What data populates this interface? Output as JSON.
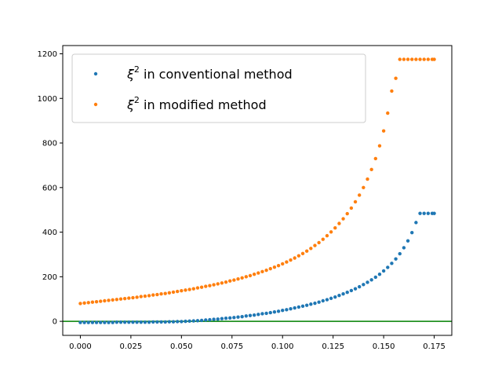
{
  "chart_data": {
    "type": "scatter",
    "title": "",
    "xlabel": "",
    "ylabel": "",
    "xlim": [
      -0.0087,
      0.1837
    ],
    "ylim": [
      -63,
      1237
    ],
    "x_ticks": [
      0.0,
      0.025,
      0.05,
      0.075,
      0.1,
      0.125,
      0.15,
      0.175
    ],
    "x_tick_labels": [
      "0.000",
      "0.025",
      "0.050",
      "0.075",
      "0.100",
      "0.125",
      "0.150",
      "0.175"
    ],
    "y_ticks": [
      0,
      200,
      400,
      600,
      800,
      1000,
      1200
    ],
    "y_tick_labels": [
      "0",
      "200",
      "400",
      "600",
      "800",
      "1000",
      "1200"
    ],
    "grid": false,
    "legend_position": "top-left",
    "reference_line": {
      "y": 0,
      "color": "#008000"
    },
    "x": [
      0.0,
      0.002,
      0.004,
      0.006,
      0.008,
      0.01,
      0.012,
      0.014,
      0.016,
      0.018,
      0.02,
      0.022,
      0.024,
      0.026,
      0.028,
      0.03,
      0.032,
      0.034,
      0.036,
      0.038,
      0.04,
      0.042,
      0.044,
      0.046,
      0.048,
      0.05,
      0.052,
      0.054,
      0.056,
      0.058,
      0.06,
      0.062,
      0.064,
      0.066,
      0.068,
      0.07,
      0.072,
      0.074,
      0.076,
      0.078,
      0.08,
      0.082,
      0.084,
      0.086,
      0.088,
      0.09,
      0.092,
      0.094,
      0.096,
      0.098,
      0.1,
      0.102,
      0.104,
      0.106,
      0.108,
      0.11,
      0.112,
      0.114,
      0.116,
      0.118,
      0.12,
      0.122,
      0.124,
      0.126,
      0.128,
      0.13,
      0.132,
      0.134,
      0.136,
      0.138,
      0.14,
      0.142,
      0.144,
      0.146,
      0.148,
      0.15,
      0.152,
      0.154,
      0.156,
      0.158,
      0.16,
      0.162,
      0.164,
      0.166,
      0.168,
      0.17,
      0.172,
      0.174,
      0.175
    ],
    "series": [
      {
        "name": "ξ² in conventional method",
        "color": "#1f77b4",
        "values": [
          -5,
          -5,
          -5,
          -5,
          -5,
          -5,
          -5,
          -5,
          -5,
          -4,
          -4,
          -4,
          -4,
          -4,
          -4,
          -4,
          -4,
          -4,
          -3,
          -3,
          -3,
          -3,
          -2,
          -2,
          -1,
          -1,
          0,
          1,
          2,
          3,
          4,
          6,
          7,
          9,
          10,
          12,
          14,
          15,
          17,
          19,
          21,
          24,
          26,
          28,
          31,
          34,
          36,
          39,
          42,
          45,
          49,
          52,
          56,
          60,
          64,
          68,
          72,
          77,
          81,
          86,
          92,
          97,
          103,
          109,
          116,
          123,
          130,
          138,
          146,
          155,
          165,
          175,
          186,
          198,
          211,
          226,
          242,
          260,
          280,
          303,
          330,
          361,
          398,
          443,
          484,
          484,
          484,
          484,
          484
        ]
      },
      {
        "name": "ξ² in modified method",
        "color": "#ff7f0e",
        "values": [
          80,
          82,
          84,
          86,
          88,
          90,
          92,
          94,
          96,
          98,
          100,
          102,
          104,
          106,
          108,
          111,
          113,
          115,
          118,
          120,
          123,
          125,
          128,
          131,
          134,
          137,
          140,
          143,
          146,
          150,
          153,
          157,
          160,
          164,
          168,
          172,
          176,
          181,
          185,
          190,
          195,
          200,
          205,
          211,
          217,
          223,
          229,
          236,
          243,
          250,
          258,
          266,
          275,
          284,
          294,
          304,
          315,
          327,
          340,
          353,
          368,
          384,
          401,
          419,
          439,
          460,
          483,
          508,
          536,
          566,
          600,
          638,
          681,
          730,
          787,
          854,
          934,
          1033,
          1090,
          1175,
          1175,
          1175,
          1175,
          1175,
          1175,
          1175,
          1175,
          1175,
          1175
        ]
      }
    ]
  },
  "legend": {
    "items": [
      {
        "prefix": "ξ",
        "sup": "2",
        "rest": " in conventional method",
        "color": "#1f77b4"
      },
      {
        "prefix": "ξ",
        "sup": "2",
        "rest": " in modified method",
        "color": "#ff7f0e"
      }
    ]
  }
}
